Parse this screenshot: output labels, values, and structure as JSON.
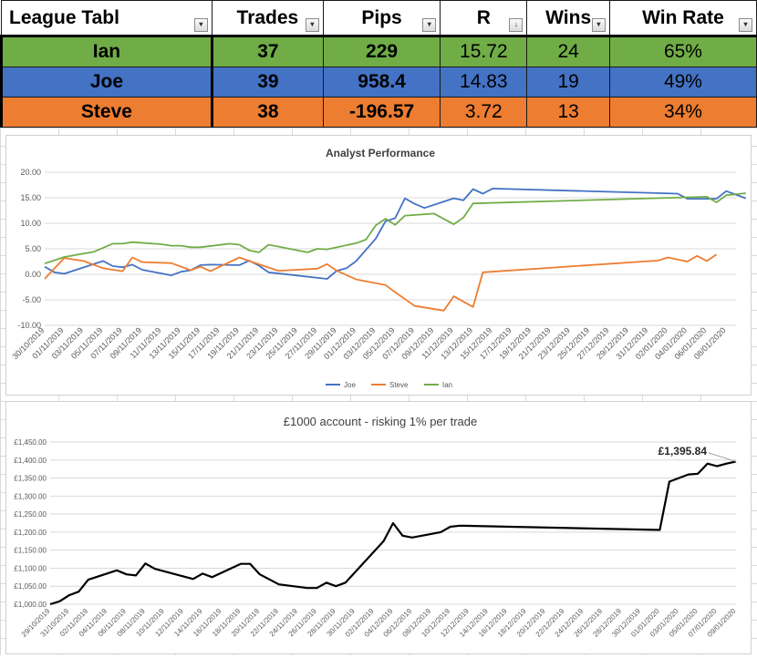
{
  "table": {
    "headers": [
      "League Tabl",
      "Trades",
      "Pips",
      "R",
      "Wins",
      "Win Rate"
    ],
    "rows": [
      {
        "name": "Ian",
        "trades": "37",
        "pips": "229",
        "r": "15.72",
        "wins": "24",
        "win_rate": "65%",
        "color": "#70ad47"
      },
      {
        "name": "Joe",
        "trades": "39",
        "pips": "958.4",
        "r": "14.83",
        "wins": "19",
        "win_rate": "49%",
        "color": "#4472c4"
      },
      {
        "name": "Steve",
        "trades": "38",
        "pips": "-196.57",
        "r": "3.72",
        "wins": "13",
        "win_rate": "34%",
        "color": "#ed7d31"
      }
    ]
  },
  "chart_data": [
    {
      "type": "line",
      "title": "Analyst Performance",
      "ylim": [
        -10,
        20
      ],
      "yticks": [
        "20.00",
        "15.00",
        "10.00",
        "5.00",
        "0.00",
        "-5.00",
        "-10.00"
      ],
      "xticks": [
        "30/10/2019",
        "01/11/2019",
        "03/11/2019",
        "05/11/2019",
        "07/11/2019",
        "09/11/2019",
        "11/11/2019",
        "13/11/2019",
        "15/11/2019",
        "17/11/2019",
        "19/11/2019",
        "21/11/2019",
        "23/11/2019",
        "25/11/2019",
        "27/11/2019",
        "29/11/2019",
        "01/12/2019",
        "03/12/2019",
        "05/12/2019",
        "07/12/2019",
        "09/12/2019",
        "11/12/2019",
        "13/12/2019",
        "15/12/2019",
        "17/12/2019",
        "19/12/2019",
        "21/12/2019",
        "23/12/2019",
        "25/12/2019",
        "27/12/2019",
        "29/12/2019",
        "31/12/2019",
        "02/01/2020",
        "04/01/2020",
        "06/01/2020",
        "08/01/2020"
      ],
      "grid": true,
      "legend": "bottom",
      "x_start": "30/10/2019",
      "x_end": "09/01/2020",
      "series": [
        {
          "name": "Joe",
          "color": "#4472c4",
          "points": [
            [
              "30/10/2019",
              1.5
            ],
            [
              "31/10/2019",
              0.4
            ],
            [
              "01/11/2019",
              0.1
            ],
            [
              "05/11/2019",
              2.6
            ],
            [
              "06/11/2019",
              1.6
            ],
            [
              "07/11/2019",
              1.4
            ],
            [
              "08/11/2019",
              1.9
            ],
            [
              "09/11/2019",
              0.9
            ],
            [
              "12/11/2019",
              -0.2
            ],
            [
              "13/11/2019",
              0.5
            ],
            [
              "14/11/2019",
              0.8
            ],
            [
              "15/11/2019",
              1.8
            ],
            [
              "16/11/2019",
              1.9
            ],
            [
              "19/11/2019",
              1.8
            ],
            [
              "20/11/2019",
              2.7
            ],
            [
              "21/11/2019",
              1.7
            ],
            [
              "22/11/2019",
              0.4
            ],
            [
              "28/11/2019",
              -0.9
            ],
            [
              "29/11/2019",
              0.7
            ],
            [
              "30/11/2019",
              1.2
            ],
            [
              "01/12/2019",
              2.6
            ],
            [
              "03/12/2019",
              7.0
            ],
            [
              "04/12/2019",
              10.4
            ],
            [
              "05/12/2019",
              11.0
            ],
            [
              "06/12/2019",
              14.9
            ],
            [
              "07/12/2019",
              13.8
            ],
            [
              "08/12/2019",
              13.0
            ],
            [
              "11/12/2019",
              14.9
            ],
            [
              "12/12/2019",
              14.5
            ],
            [
              "13/12/2019",
              16.7
            ],
            [
              "14/12/2019",
              15.8
            ],
            [
              "15/12/2019",
              16.8
            ],
            [
              "03/01/2020",
              15.8
            ],
            [
              "04/01/2020",
              14.8
            ],
            [
              "07/01/2020",
              14.8
            ],
            [
              "08/01/2020",
              16.3
            ],
            [
              "09/01/2020",
              15.6
            ],
            [
              "10/01/2020",
              14.9
            ]
          ]
        },
        {
          "name": "Steve",
          "color": "#ed7d31",
          "points": [
            [
              "30/10/2019",
              -0.9
            ],
            [
              "01/11/2019",
              3.2
            ],
            [
              "03/11/2019",
              2.6
            ],
            [
              "04/11/2019",
              1.9
            ],
            [
              "05/11/2019",
              1.2
            ],
            [
              "07/11/2019",
              0.6
            ],
            [
              "08/11/2019",
              3.3
            ],
            [
              "09/11/2019",
              2.4
            ],
            [
              "12/11/2019",
              2.2
            ],
            [
              "14/11/2019",
              0.8
            ],
            [
              "15/11/2019",
              1.5
            ],
            [
              "16/11/2019",
              0.6
            ],
            [
              "19/11/2019",
              3.3
            ],
            [
              "20/11/2019",
              2.6
            ],
            [
              "23/11/2019",
              0.7
            ],
            [
              "27/11/2019",
              1.1
            ],
            [
              "28/11/2019",
              2.0
            ],
            [
              "29/11/2019",
              0.7
            ],
            [
              "01/12/2019",
              -1.0
            ],
            [
              "04/12/2019",
              -2.1
            ],
            [
              "05/12/2019",
              -3.5
            ],
            [
              "07/12/2019",
              -6.2
            ],
            [
              "10/12/2019",
              -7.1
            ],
            [
              "11/12/2019",
              -4.3
            ],
            [
              "13/12/2019",
              -6.4
            ],
            [
              "14/12/2019",
              0.4
            ],
            [
              "01/01/2020",
              2.7
            ],
            [
              "02/01/2020",
              3.3
            ],
            [
              "04/01/2020",
              2.5
            ],
            [
              "05/01/2020",
              3.6
            ],
            [
              "06/01/2020",
              2.6
            ],
            [
              "07/01/2020",
              3.9
            ]
          ]
        },
        {
          "name": "Ian",
          "color": "#70ad47",
          "points": [
            [
              "30/10/2019",
              2.1
            ],
            [
              "01/11/2019",
              3.4
            ],
            [
              "04/11/2019",
              4.4
            ],
            [
              "06/11/2019",
              6.0
            ],
            [
              "07/11/2019",
              6.0
            ],
            [
              "08/11/2019",
              6.3
            ],
            [
              "11/11/2019",
              5.9
            ],
            [
              "12/11/2019",
              5.6
            ],
            [
              "13/11/2019",
              5.6
            ],
            [
              "14/11/2019",
              5.3
            ],
            [
              "15/11/2019",
              5.3
            ],
            [
              "18/11/2019",
              6.0
            ],
            [
              "19/11/2019",
              5.8
            ],
            [
              "20/11/2019",
              4.7
            ],
            [
              "21/11/2019",
              4.3
            ],
            [
              "22/11/2019",
              5.8
            ],
            [
              "26/11/2019",
              4.3
            ],
            [
              "27/11/2019",
              5.0
            ],
            [
              "28/11/2019",
              4.9
            ],
            [
              "01/12/2019",
              6.1
            ],
            [
              "02/12/2019",
              6.8
            ],
            [
              "03/12/2019",
              9.6
            ],
            [
              "04/12/2019",
              10.9
            ],
            [
              "05/12/2019",
              9.7
            ],
            [
              "06/12/2019",
              11.5
            ],
            [
              "09/12/2019",
              11.9
            ],
            [
              "11/12/2019",
              9.8
            ],
            [
              "12/12/2019",
              11.1
            ],
            [
              "13/12/2019",
              13.9
            ],
            [
              "06/01/2020",
              15.2
            ],
            [
              "07/01/2020",
              14.1
            ],
            [
              "08/01/2020",
              15.5
            ],
            [
              "09/01/2020",
              15.7
            ],
            [
              "10/01/2020",
              15.9
            ]
          ]
        }
      ]
    },
    {
      "type": "line",
      "title": "£1000 account - risking 1% per trade",
      "ylim": [
        1000,
        1450
      ],
      "yticks": [
        "£1,450.00",
        "£1,400.00",
        "£1,350.00",
        "£1,300.00",
        "£1,250.00",
        "£1,200.00",
        "£1,150.00",
        "£1,100.00",
        "£1,050.00",
        "£1,000.00"
      ],
      "xticks": [
        "29/10/2019",
        "31/10/2019",
        "02/11/2019",
        "04/11/2019",
        "06/11/2019",
        "08/11/2019",
        "10/11/2019",
        "12/11/2019",
        "14/11/2019",
        "16/11/2019",
        "18/11/2019",
        "20/11/2019",
        "22/11/2019",
        "24/11/2019",
        "26/11/2019",
        "28/11/2019",
        "30/11/2019",
        "02/12/2019",
        "04/12/2019",
        "06/12/2019",
        "08/12/2019",
        "10/12/2019",
        "12/12/2019",
        "14/12/2019",
        "16/12/2019",
        "18/12/2019",
        "20/12/2019",
        "22/12/2019",
        "24/12/2019",
        "26/12/2019",
        "28/12/2019",
        "30/12/2019",
        "01/01/2020",
        "03/01/2020",
        "05/01/2020",
        "07/01/2020",
        "09/01/2020"
      ],
      "grid": true,
      "annotation": "£1,395.84",
      "x_start": "29/10/2019",
      "x_end": "09/01/2020",
      "series": [
        {
          "name": "",
          "color": "#000000",
          "points": [
            [
              "29/10/2019",
              1000
            ],
            [
              "30/10/2019",
              1008
            ],
            [
              "31/10/2019",
              1025
            ],
            [
              "01/11/2019",
              1035
            ],
            [
              "02/11/2019",
              1068
            ],
            [
              "05/11/2019",
              1094
            ],
            [
              "06/11/2019",
              1083
            ],
            [
              "07/11/2019",
              1080
            ],
            [
              "08/11/2019",
              1113
            ],
            [
              "09/11/2019",
              1098
            ],
            [
              "13/11/2019",
              1070
            ],
            [
              "14/11/2019",
              1085
            ],
            [
              "15/11/2019",
              1075
            ],
            [
              "18/11/2019",
              1112
            ],
            [
              "19/11/2019",
              1112
            ],
            [
              "20/11/2019",
              1083
            ],
            [
              "22/11/2019",
              1055
            ],
            [
              "25/11/2019",
              1045
            ],
            [
              "26/11/2019",
              1045
            ],
            [
              "27/11/2019",
              1060
            ],
            [
              "28/11/2019",
              1050
            ],
            [
              "29/11/2019",
              1060
            ],
            [
              "03/12/2019",
              1175
            ],
            [
              "04/12/2019",
              1225
            ],
            [
              "05/12/2019",
              1190
            ],
            [
              "06/12/2019",
              1185
            ],
            [
              "09/12/2019",
              1200
            ],
            [
              "10/12/2019",
              1215
            ],
            [
              "11/12/2019",
              1218
            ],
            [
              "01/01/2020",
              1206
            ],
            [
              "02/01/2020",
              1340
            ],
            [
              "04/01/2020",
              1360
            ],
            [
              "05/01/2020",
              1362
            ],
            [
              "06/01/2020",
              1390
            ],
            [
              "07/01/2020",
              1383
            ],
            [
              "08/01/2020",
              1390
            ],
            [
              "09/01/2020",
              1396
            ]
          ]
        }
      ]
    }
  ]
}
